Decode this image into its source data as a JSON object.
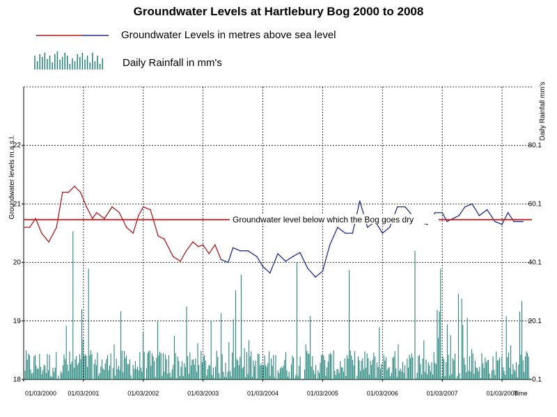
{
  "chart_data": {
    "type": "line",
    "title": "Groundwater Levels at Hartlebury Bog 2000 to 2008",
    "legend": {
      "placement": "top-left",
      "entries": [
        {
          "name": "Groundwater Levels in metres above sea level",
          "color_start": "#b01818",
          "color_end": "#1f2b8f"
        },
        {
          "name": "Daily Rainfall in mm's",
          "color": "#0f7a6e"
        }
      ]
    },
    "ylabel": "Groundwater levels m.a.s.l.",
    "y2label": "Daily Rainfall mm's",
    "xlabel": "Time",
    "ylim": [
      18,
      23
    ],
    "y2lim": [
      0.1,
      100.1
    ],
    "yticks": [
      "18",
      "19",
      "20",
      "21",
      "22"
    ],
    "y2ticks": [
      "0.1",
      "20.1",
      "40.1",
      "60.1",
      "80.1"
    ],
    "xticks": [
      "01/03/2000",
      "01/03/2001",
      "01/03/2002",
      "01/03/2003",
      "01/03/2004",
      "01/03/2005",
      "01/03/2006",
      "01/03/2007",
      "01/03/2008"
    ],
    "grid": true,
    "threshold": {
      "value": 20.73,
      "label": "Groundwater level below which the Bog goes dry",
      "color": "#e0161b"
    },
    "series": [
      {
        "name": "Groundwater Levels in metres above sea level",
        "x": [
          2000.0,
          2000.1,
          2000.2,
          2000.3,
          2000.42,
          2000.55,
          2000.65,
          2000.75,
          2000.85,
          2000.95,
          2001.05,
          2001.15,
          2001.22,
          2001.35,
          2001.48,
          2001.6,
          2001.72,
          2001.83,
          2001.92,
          2002.0,
          2002.12,
          2002.25,
          2002.35,
          2002.5,
          2002.62,
          2002.72,
          2002.83,
          2002.92,
          2003.0,
          2003.1,
          2003.2,
          2003.3,
          2003.42,
          2003.5,
          2003.62,
          2003.75,
          2003.9,
          2004.0,
          2004.12,
          2004.25,
          2004.38,
          2004.5,
          2004.62,
          2004.75,
          2004.88,
          2005.0,
          2005.12,
          2005.25,
          2005.38,
          2005.5,
          2005.62,
          2005.75,
          2005.88,
          2006.0,
          2006.12,
          2006.25,
          2006.38,
          2006.5,
          2006.62,
          2006.75,
          2006.88,
          2007.0,
          2007.08,
          2007.18,
          2007.28,
          2007.38,
          2007.5,
          2007.62,
          2007.75,
          2007.88,
          2008.0,
          2008.1,
          2008.2,
          2008.3,
          2008.35
        ],
        "values": [
          20.6,
          20.6,
          20.75,
          20.5,
          20.35,
          20.6,
          21.2,
          21.2,
          21.3,
          21.2,
          20.95,
          20.75,
          20.85,
          20.75,
          20.95,
          20.85,
          20.6,
          20.5,
          20.8,
          20.95,
          20.9,
          20.45,
          20.4,
          20.1,
          20.02,
          20.2,
          20.35,
          20.27,
          20.3,
          20.15,
          20.3,
          20.05,
          20.0,
          20.25,
          20.2,
          20.2,
          20.1,
          19.93,
          19.82,
          20.15,
          20.02,
          20.1,
          20.17,
          19.9,
          19.75,
          19.85,
          20.3,
          20.6,
          20.5,
          20.5,
          21.05,
          20.6,
          20.7,
          20.5,
          20.6,
          20.95,
          20.95,
          20.8,
          20.68,
          20.65,
          20.85,
          20.85,
          20.7,
          20.75,
          20.8,
          20.95,
          21.0,
          20.8,
          20.9,
          20.7,
          20.65,
          20.85,
          20.7,
          20.7,
          20.7
        ]
      }
    ]
  }
}
